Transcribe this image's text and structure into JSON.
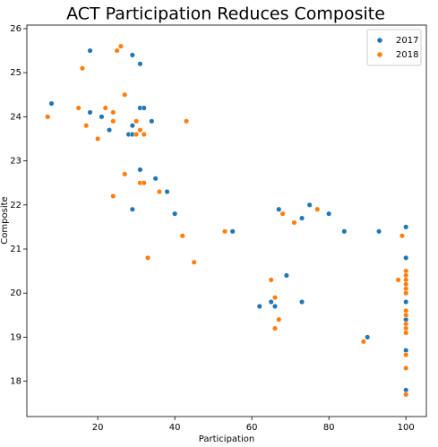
{
  "chart_data": {
    "type": "scatter",
    "title": "ACT Participation Reduces Composite",
    "x_label": "Participation",
    "y_label": "Composite",
    "xlim": [
      1.6,
      105.3
    ],
    "ylim": [
      17.2,
      26.08
    ],
    "xticks": [
      20,
      40,
      60,
      80,
      100
    ],
    "yticks": [
      18,
      19,
      20,
      21,
      22,
      23,
      24,
      25,
      26
    ],
    "legend": "upper right",
    "series": [
      {
        "name": "2017",
        "color": "#1f77b4",
        "x": [
          8,
          18,
          18,
          21,
          23,
          28,
          29,
          29,
          29,
          31,
          31,
          32,
          34,
          31,
          35,
          38,
          29,
          40,
          55,
          62,
          65,
          66,
          67,
          69,
          73,
          73,
          75,
          80,
          84,
          90,
          93,
          100,
          100,
          100,
          100,
          100,
          100,
          100,
          100,
          100
        ],
        "values": [
          24.3,
          25.5,
          24.1,
          24.0,
          23.7,
          23.6,
          25.4,
          23.8,
          23.6,
          25.2,
          24.2,
          24.2,
          23.9,
          22.8,
          22.6,
          22.3,
          21.9,
          21.8,
          21.4,
          19.7,
          19.8,
          19.7,
          21.9,
          20.4,
          21.7,
          19.8,
          22.0,
          21.8,
          21.4,
          19.0,
          21.4,
          21.5,
          20.8,
          20.3,
          20.0,
          19.8,
          19.5,
          19.4,
          18.7,
          17.8
        ]
      },
      {
        "name": "2018",
        "color": "#ff7f0e",
        "x": [
          7,
          16,
          15,
          17,
          20,
          22,
          24,
          24,
          25,
          26,
          27,
          27,
          24,
          30,
          30,
          31,
          32,
          31,
          32,
          36,
          43,
          33,
          42,
          45,
          53,
          65,
          66,
          66,
          67,
          68,
          71,
          77,
          89,
          98,
          99,
          100,
          100,
          100,
          100,
          100,
          100,
          100,
          100,
          100,
          100,
          100,
          100,
          100,
          100
        ],
        "values": [
          24.0,
          25.1,
          24.2,
          23.8,
          23.5,
          24.2,
          24.1,
          23.9,
          25.5,
          25.6,
          24.5,
          22.7,
          22.2,
          23.9,
          23.6,
          23.7,
          23.6,
          22.5,
          22.5,
          22.3,
          23.9,
          20.8,
          21.3,
          20.7,
          21.4,
          20.3,
          19.9,
          19.2,
          19.4,
          21.8,
          21.6,
          21.9,
          18.9,
          20.3,
          21.3,
          20.5,
          20.4,
          20.3,
          20.2,
          20.1,
          20.0,
          19.6,
          19.5,
          19.3,
          19.2,
          19.1,
          18.6,
          18.3,
          17.7
        ]
      }
    ]
  }
}
